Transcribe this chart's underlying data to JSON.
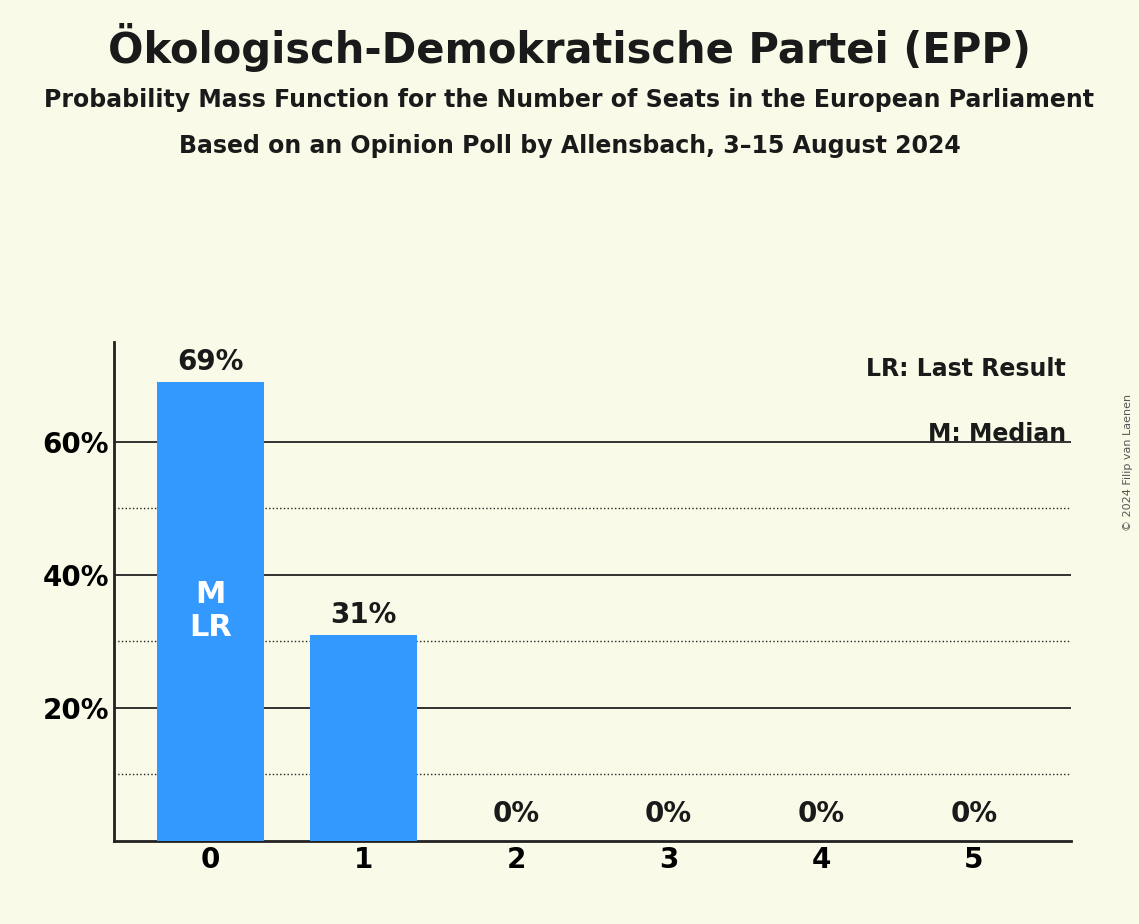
{
  "title": "Ökologisch-Demokratische Partei (EPP)",
  "subtitle1": "Probability Mass Function for the Number of Seats in the European Parliament",
  "subtitle2": "Based on an Opinion Poll by Allensbach, 3–15 August 2024",
  "copyright": "© 2024 Filip van Laenen",
  "categories": [
    0,
    1,
    2,
    3,
    4,
    5
  ],
  "values": [
    0.69,
    0.31,
    0.0,
    0.0,
    0.0,
    0.0
  ],
  "bar_color": "#3399FF",
  "background_color": "#FAFAE8",
  "bar_labels": [
    "69%",
    "31%",
    "0%",
    "0%",
    "0%",
    "0%"
  ],
  "median_bar": 0,
  "last_result_bar": 0,
  "legend_lr": "LR: Last Result",
  "legend_m": "M: Median",
  "ylabel_ticks": [
    0.0,
    0.2,
    0.4,
    0.6
  ],
  "ylabel_labels": [
    "",
    "20%",
    "40%",
    "60%"
  ],
  "grid_solid": [
    0.2,
    0.4,
    0.6
  ],
  "grid_dotted": [
    0.1,
    0.3,
    0.5
  ],
  "ylim": [
    0,
    0.75
  ],
  "bar_width": 0.7,
  "inside_label_color": "#FFFFFF",
  "outside_label_color": "#1A1A1A",
  "title_fontsize": 30,
  "subtitle_fontsize": 17,
  "tick_fontsize": 20,
  "bar_label_fontsize": 20,
  "inside_label_fontsize": 22,
  "legend_fontsize": 17,
  "copyright_fontsize": 8
}
